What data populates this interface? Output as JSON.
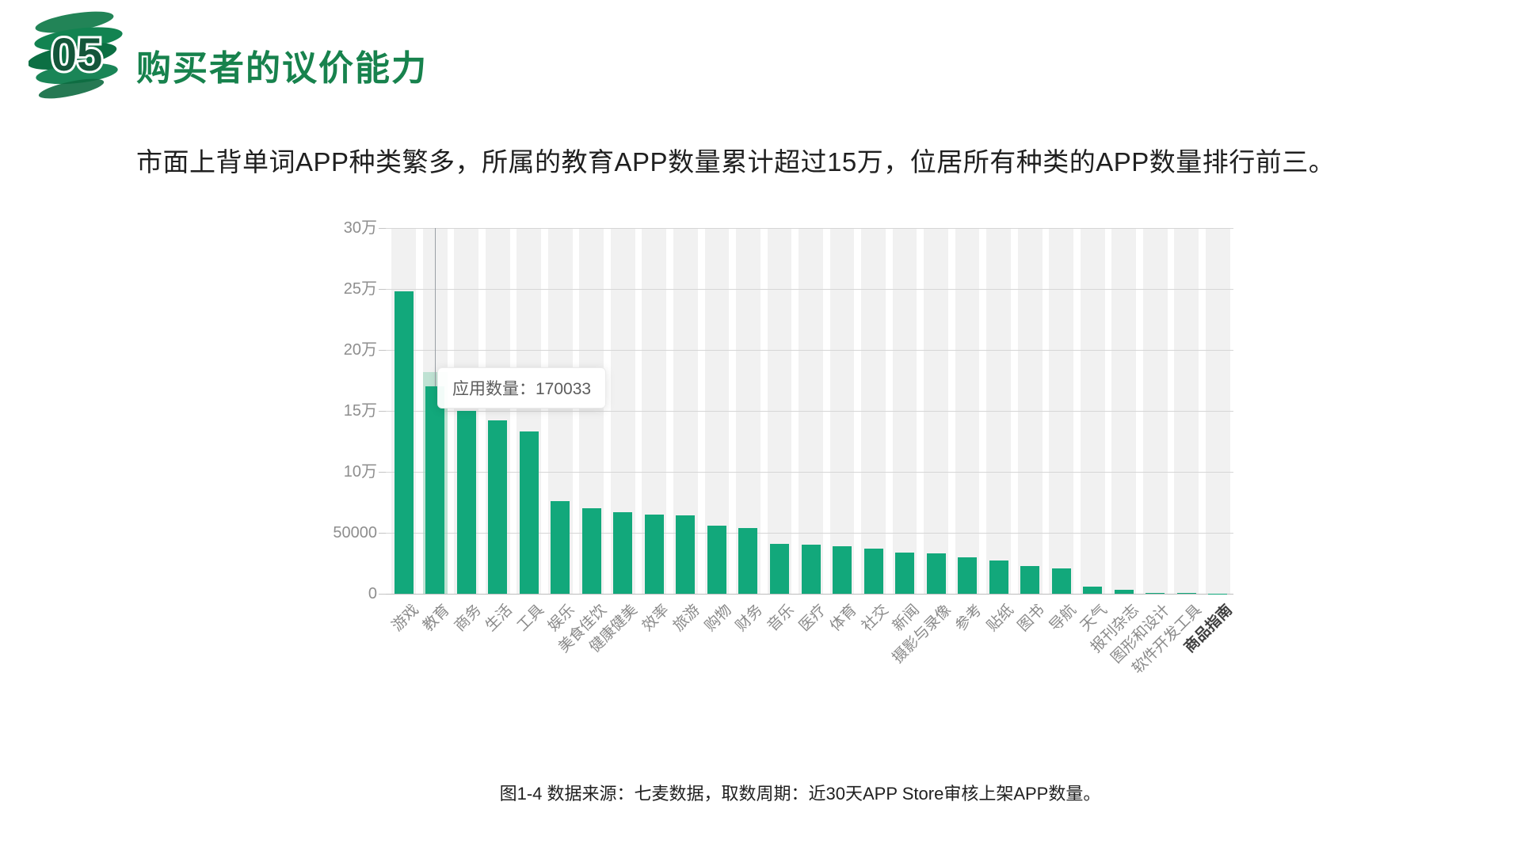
{
  "header": {
    "badge": "05",
    "title": "购买者的议价能力"
  },
  "subtitle": "市面上背单词APP种类繁多，所属的教育APP数量累计超过15万，位居所有种类的APP数量排行前三。",
  "caption": "图1-4 数据来源：七麦数据，取数周期：近30天APP Store审核上架APP数量。",
  "tooltip": {
    "label": "应用数量",
    "value": "170033",
    "text": "应用数量：170033"
  },
  "colors": {
    "bar": "#12a87b",
    "bar_hover_halo": "rgba(150,214,185,0.55)",
    "title_green": "#17824d",
    "band_background": "#f1f1f1",
    "gridline": "#d6d6d6",
    "axis_label": "#8e8e8e"
  },
  "chart_data": {
    "type": "bar",
    "title": "",
    "xlabel": "",
    "ylabel": "",
    "ylim": [
      0,
      300000
    ],
    "grid": true,
    "legend": false,
    "background_bands": true,
    "categories": [
      "游戏",
      "教育",
      "商务",
      "生活",
      "工具",
      "娱乐",
      "美食佳饮",
      "健康健美",
      "效率",
      "旅游",
      "购物",
      "财务",
      "音乐",
      "医疗",
      "体育",
      "社交",
      "新闻",
      "摄影与录像",
      "参考",
      "贴纸",
      "图书",
      "导航",
      "天气",
      "报刊杂志",
      "图形和设计",
      "软件开发工具",
      "商品指南"
    ],
    "values": [
      248000,
      170033,
      150000,
      142000,
      133000,
      76000,
      70000,
      67000,
      65000,
      64000,
      56000,
      54000,
      41000,
      40000,
      39000,
      37000,
      34000,
      33000,
      30000,
      27000,
      23000,
      21000,
      6000,
      3000,
      800,
      500,
      200
    ],
    "yticks": [
      {
        "label": "30万",
        "value": 300000
      },
      {
        "label": "25万",
        "value": 250000
      },
      {
        "label": "20万",
        "value": 200000
      },
      {
        "label": "15万",
        "value": 150000
      },
      {
        "label": "10万",
        "value": 100000
      },
      {
        "label": "50000",
        "value": 50000
      },
      {
        "label": "0",
        "value": 0
      }
    ],
    "highlight_index": 1,
    "highlighted_category": "教育",
    "highlighted_value": 170033,
    "emphasized_xlabel": "商品指南"
  }
}
